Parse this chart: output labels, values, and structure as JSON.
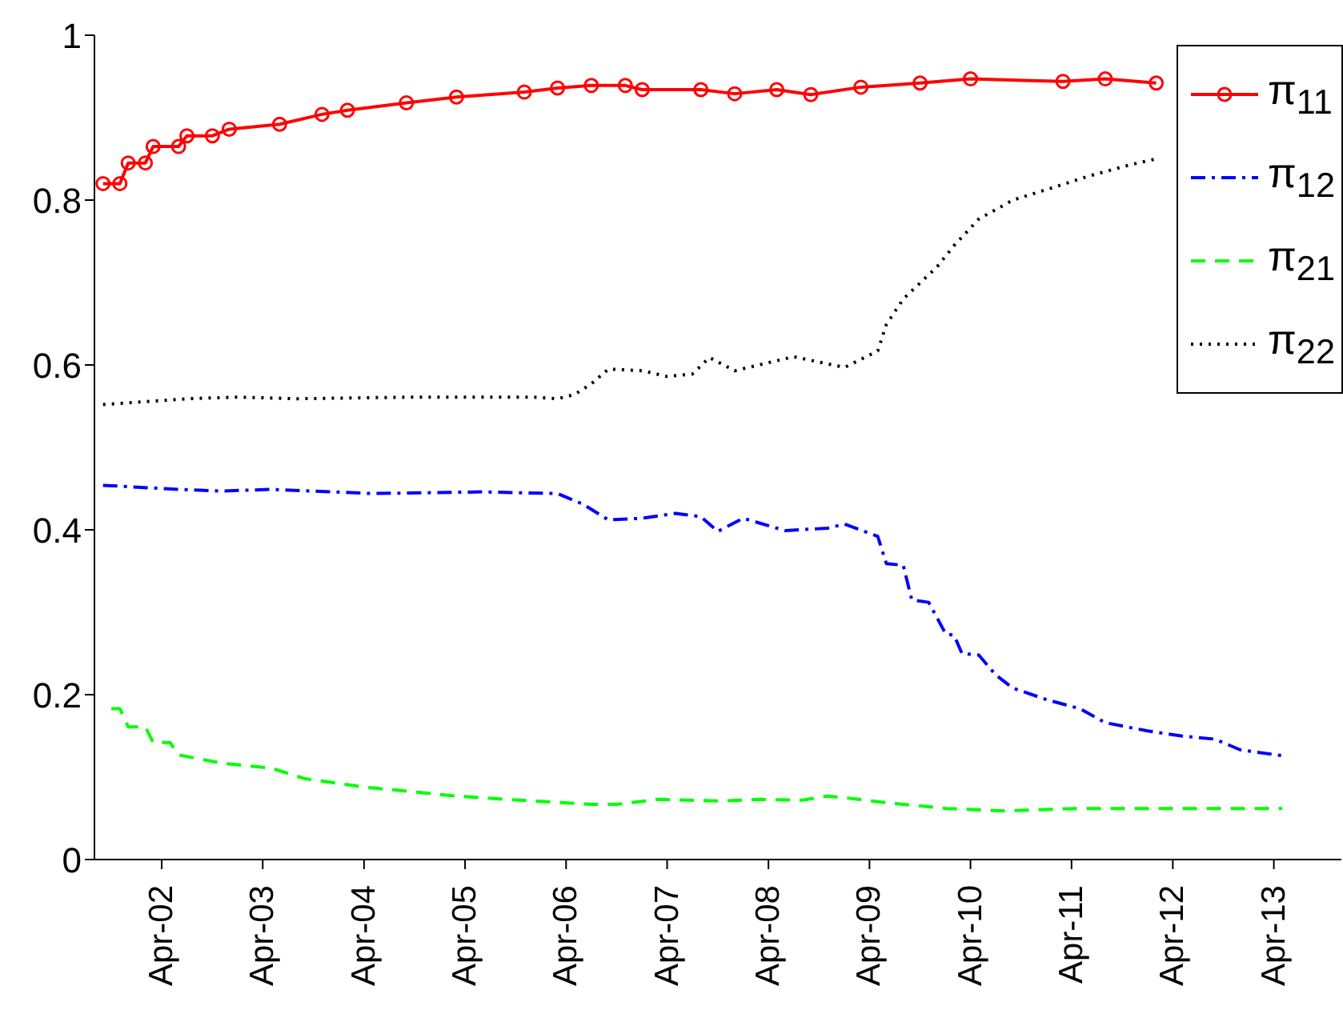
{
  "chart_data": {
    "type": "line",
    "xlim": [
      "2001-08",
      "2013-12"
    ],
    "xticks": [
      {
        "value": "2002-04",
        "label": "Apr-02"
      },
      {
        "value": "2003-04",
        "label": "Apr-03"
      },
      {
        "value": "2004-04",
        "label": "Apr-04"
      },
      {
        "value": "2005-04",
        "label": "Apr-05"
      },
      {
        "value": "2006-04",
        "label": "Apr-06"
      },
      {
        "value": "2007-04",
        "label": "Apr-07"
      },
      {
        "value": "2008-04",
        "label": "Apr-08"
      },
      {
        "value": "2009-04",
        "label": "Apr-09"
      },
      {
        "value": "2010-04",
        "label": "Apr-10"
      },
      {
        "value": "2011-04",
        "label": "Apr-11"
      },
      {
        "value": "2012-04",
        "label": "Apr-12"
      },
      {
        "value": "2013-04",
        "label": "Apr-13"
      }
    ],
    "ylim": [
      0,
      1
    ],
    "yticks": [
      0,
      0.2,
      0.4,
      0.6,
      0.8,
      1
    ],
    "grid": false,
    "legend": "top right",
    "series": [
      {
        "name": "π$_{11}$",
        "color": "#ff0000",
        "marker": "circle",
        "line_style": "solid",
        "x": [
          "2001-09",
          "2001-11",
          "2001-12",
          "2002-02",
          "2002-03",
          "2002-06",
          "2002-07",
          "2002-10",
          "2002-12",
          "2003-06",
          "2003-11",
          "2004-02",
          "2004-09",
          "2005-03",
          "2005-11",
          "2006-03",
          "2006-07",
          "2006-11",
          "2007-01",
          "2007-08",
          "2007-12",
          "2008-05",
          "2008-09",
          "2009-03",
          "2009-10",
          "2010-04",
          "2011-03",
          "2011-08",
          "2012-02"
        ],
        "values": [
          0.82,
          0.82,
          0.845,
          0.845,
          0.865,
          0.865,
          0.878,
          0.878,
          0.886,
          0.892,
          0.904,
          0.909,
          0.918,
          0.925,
          0.931,
          0.936,
          0.939,
          0.939,
          0.934,
          0.934,
          0.929,
          0.934,
          0.928,
          0.937,
          0.942,
          0.947,
          0.944,
          0.947,
          0.942
        ]
      },
      {
        "name": "π$_{12}$",
        "color": "#0000ff",
        "marker": "none",
        "line_style": "dashdot",
        "x": [
          "2001-09",
          "2002-06",
          "2002-11",
          "2003-05",
          "2004-05",
          "2005-06",
          "2006-03",
          "2006-06",
          "2006-09",
          "2007-01",
          "2007-05",
          "2007-08",
          "2007-10",
          "2008-01",
          "2008-06",
          "2008-11",
          "2009-01",
          "2009-05",
          "2009-06",
          "2009-08",
          "2009-09",
          "2009-11",
          "2010-01",
          "2010-02",
          "2010-03",
          "2010-05",
          "2010-07",
          "2010-09",
          "2011-01",
          "2011-05",
          "2011-08",
          "2012-01",
          "2012-05",
          "2012-09",
          "2012-12",
          "2013-05"
        ],
        "values": [
          0.454,
          0.449,
          0.447,
          0.449,
          0.444,
          0.446,
          0.444,
          0.431,
          0.412,
          0.414,
          0.42,
          0.416,
          0.398,
          0.414,
          0.399,
          0.402,
          0.407,
          0.392,
          0.359,
          0.357,
          0.315,
          0.312,
          0.274,
          0.272,
          0.25,
          0.248,
          0.224,
          0.208,
          0.194,
          0.183,
          0.166,
          0.156,
          0.15,
          0.146,
          0.133,
          0.126
        ]
      },
      {
        "name": "π$_{21}$",
        "color": "#00ff00",
        "marker": "none",
        "line_style": "dashed",
        "x": [
          "2001-10",
          "2001-11",
          "2001-12",
          "2002-02",
          "2002-03",
          "2002-05",
          "2002-06",
          "2002-11",
          "2003-05",
          "2003-09",
          "2004-04",
          "2005-03",
          "2005-12",
          "2006-07",
          "2006-10",
          "2007-03",
          "2007-10",
          "2008-03",
          "2008-08",
          "2008-11",
          "2009-01",
          "2009-06",
          "2010-01",
          "2010-08",
          "2011-05",
          "2012-02",
          "2013-05"
        ],
        "values": [
          0.183,
          0.183,
          0.161,
          0.161,
          0.142,
          0.142,
          0.127,
          0.117,
          0.111,
          0.098,
          0.088,
          0.077,
          0.071,
          0.067,
          0.067,
          0.073,
          0.071,
          0.073,
          0.072,
          0.077,
          0.075,
          0.069,
          0.062,
          0.059,
          0.062,
          0.062,
          0.062
        ]
      },
      {
        "name": "π$_{22}$",
        "color": "#000000",
        "marker": "none",
        "line_style": "dotted",
        "x": [
          "2001-09",
          "2002-07",
          "2003-01",
          "2003-08",
          "2004-10",
          "2005-12",
          "2006-03",
          "2006-05",
          "2006-07",
          "2006-09",
          "2007-01",
          "2007-04",
          "2007-07",
          "2007-09",
          "2007-12",
          "2008-07",
          "2009-01",
          "2009-05",
          "2009-06",
          "2009-08",
          "2009-12",
          "2010-02",
          "2010-05",
          "2010-09",
          "2011-02",
          "2011-06",
          "2011-11",
          "2012-02"
        ],
        "values": [
          0.552,
          0.559,
          0.561,
          0.559,
          0.561,
          0.561,
          0.559,
          0.564,
          0.577,
          0.595,
          0.593,
          0.586,
          0.589,
          0.609,
          0.593,
          0.61,
          0.597,
          0.617,
          0.649,
          0.68,
          0.719,
          0.745,
          0.777,
          0.8,
          0.816,
          0.829,
          0.843,
          0.85
        ]
      }
    ]
  }
}
